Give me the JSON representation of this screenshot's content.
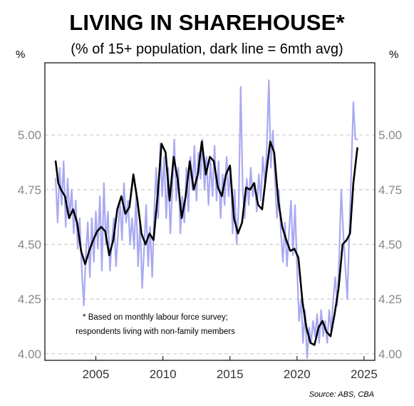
{
  "chart_data": {
    "type": "line",
    "title": "LIVING IN SHAREHOUSE*",
    "subtitle": "(% of 15+ population, dark line = 6mth avg)",
    "unit_left": "%",
    "unit_right": "%",
    "ylim": [
      3.97,
      5.33
    ],
    "yticks": [
      4.0,
      4.25,
      4.5,
      4.75,
      5.0
    ],
    "ytick_labels": [
      "4.00",
      "4.25",
      "4.50",
      "4.75",
      "5.00"
    ],
    "xlim": [
      2001.2,
      2025.8
    ],
    "xticks": [
      2005,
      2010,
      2015,
      2020,
      2025
    ],
    "xtick_labels": [
      "2005",
      "2010",
      "2015",
      "2020",
      "2025"
    ],
    "grid": "horizontal dashed",
    "axes_mirrored": true,
    "note_lines": [
      "* Based on monthly labour force survey;",
      "respondents living with non-family members"
    ],
    "source": "Source: ABS, CBA",
    "colors": {
      "monthly": "#a9a9f2",
      "average": "#000000",
      "grid": "#cccccc"
    },
    "series": [
      {
        "style": "monthly",
        "points": [
          [
            2002.0,
            4.8
          ],
          [
            2002.15,
            4.6
          ],
          [
            2002.3,
            4.85
          ],
          [
            2002.45,
            4.68
          ],
          [
            2002.6,
            4.88
          ],
          [
            2002.75,
            4.58
          ],
          [
            2002.9,
            4.8
          ],
          [
            2003.05,
            4.62
          ],
          [
            2003.2,
            4.75
          ],
          [
            2003.35,
            4.55
          ],
          [
            2003.5,
            4.7
          ],
          [
            2003.65,
            4.48
          ],
          [
            2003.8,
            4.62
          ],
          [
            2003.95,
            4.38
          ],
          [
            2004.1,
            4.22
          ],
          [
            2004.25,
            4.45
          ],
          [
            2004.4,
            4.6
          ],
          [
            2004.55,
            4.35
          ],
          [
            2004.7,
            4.62
          ],
          [
            2004.85,
            4.42
          ],
          [
            2005.0,
            4.65
          ],
          [
            2005.15,
            4.48
          ],
          [
            2005.3,
            4.72
          ],
          [
            2005.45,
            4.38
          ],
          [
            2005.6,
            4.78
          ],
          [
            2005.75,
            4.5
          ],
          [
            2005.9,
            4.65
          ],
          [
            2006.05,
            4.38
          ],
          [
            2006.2,
            4.52
          ],
          [
            2006.35,
            4.62
          ],
          [
            2006.5,
            4.4
          ],
          [
            2006.65,
            4.55
          ],
          [
            2006.8,
            4.7
          ],
          [
            2006.95,
            4.52
          ],
          [
            2007.1,
            4.78
          ],
          [
            2007.25,
            4.6
          ],
          [
            2007.4,
            4.7
          ],
          [
            2007.55,
            4.5
          ],
          [
            2007.7,
            4.62
          ],
          [
            2007.85,
            4.48
          ],
          [
            2008.0,
            4.72
          ],
          [
            2008.15,
            4.4
          ],
          [
            2008.3,
            4.6
          ],
          [
            2008.45,
            4.3
          ],
          [
            2008.6,
            4.48
          ],
          [
            2008.75,
            4.68
          ],
          [
            2008.9,
            4.4
          ],
          [
            2009.05,
            4.58
          ],
          [
            2009.2,
            4.35
          ],
          [
            2009.35,
            4.65
          ],
          [
            2009.5,
            4.85
          ],
          [
            2009.65,
            4.62
          ],
          [
            2009.8,
            4.96
          ],
          [
            2009.95,
            4.72
          ],
          [
            2010.1,
            4.9
          ],
          [
            2010.25,
            4.62
          ],
          [
            2010.4,
            4.85
          ],
          [
            2010.55,
            4.55
          ],
          [
            2010.7,
            4.75
          ],
          [
            2010.85,
            4.98
          ],
          [
            2011.0,
            4.7
          ],
          [
            2011.15,
            4.85
          ],
          [
            2011.3,
            4.55
          ],
          [
            2011.45,
            4.72
          ],
          [
            2011.6,
            4.6
          ],
          [
            2011.75,
            4.85
          ],
          [
            2011.9,
            4.65
          ],
          [
            2012.05,
            4.9
          ],
          [
            2012.2,
            4.75
          ],
          [
            2012.35,
            4.95
          ],
          [
            2012.5,
            4.7
          ],
          [
            2012.65,
            4.92
          ],
          [
            2012.8,
            4.8
          ],
          [
            2012.95,
            4.98
          ],
          [
            2013.1,
            4.75
          ],
          [
            2013.25,
            4.9
          ],
          [
            2013.4,
            4.68
          ],
          [
            2013.55,
            4.88
          ],
          [
            2013.7,
            4.72
          ],
          [
            2013.85,
            4.95
          ],
          [
            2014.0,
            4.7
          ],
          [
            2014.15,
            4.88
          ],
          [
            2014.3,
            4.62
          ],
          [
            2014.45,
            4.82
          ],
          [
            2014.6,
            4.68
          ],
          [
            2014.75,
            4.9
          ],
          [
            2014.9,
            4.72
          ],
          [
            2015.05,
            4.85
          ],
          [
            2015.2,
            4.55
          ],
          [
            2015.35,
            4.75
          ],
          [
            2015.5,
            4.5
          ],
          [
            2015.65,
            4.68
          ],
          [
            2015.8,
            5.22
          ],
          [
            2015.95,
            4.75
          ],
          [
            2016.1,
            4.62
          ],
          [
            2016.25,
            4.8
          ],
          [
            2016.4,
            4.68
          ],
          [
            2016.55,
            4.85
          ],
          [
            2016.7,
            4.72
          ],
          [
            2016.85,
            4.78
          ],
          [
            2017.0,
            4.65
          ],
          [
            2017.15,
            4.82
          ],
          [
            2017.3,
            4.7
          ],
          [
            2017.45,
            4.9
          ],
          [
            2017.6,
            4.78
          ],
          [
            2017.75,
            4.95
          ],
          [
            2017.9,
            5.25
          ],
          [
            2018.05,
            4.85
          ],
          [
            2018.2,
            5.02
          ],
          [
            2018.35,
            4.8
          ],
          [
            2018.5,
            4.62
          ],
          [
            2018.65,
            4.75
          ],
          [
            2018.8,
            4.55
          ],
          [
            2018.95,
            4.42
          ],
          [
            2019.1,
            4.6
          ],
          [
            2019.25,
            4.4
          ],
          [
            2019.4,
            4.55
          ],
          [
            2019.55,
            4.7
          ],
          [
            2019.7,
            4.45
          ],
          [
            2019.85,
            4.68
          ],
          [
            2020.0,
            4.4
          ],
          [
            2020.15,
            4.15
          ],
          [
            2020.3,
            4.25
          ],
          [
            2020.45,
            4.05
          ],
          [
            2020.6,
            4.2
          ],
          [
            2020.75,
            3.98
          ],
          [
            2020.9,
            4.12
          ],
          [
            2021.05,
            4.05
          ],
          [
            2021.2,
            4.15
          ],
          [
            2021.35,
            4.08
          ],
          [
            2021.5,
            4.18
          ],
          [
            2021.65,
            4.05
          ],
          [
            2021.8,
            4.2
          ],
          [
            2021.95,
            4.08
          ],
          [
            2022.1,
            4.15
          ],
          [
            2022.25,
            4.05
          ],
          [
            2022.4,
            4.2
          ],
          [
            2022.55,
            4.1
          ],
          [
            2022.7,
            4.25
          ],
          [
            2022.85,
            4.35
          ],
          [
            2023.0,
            4.22
          ],
          [
            2023.15,
            4.45
          ],
          [
            2023.3,
            4.75
          ],
          [
            2023.45,
            4.55
          ],
          [
            2023.6,
            4.4
          ],
          [
            2023.75,
            4.25
          ],
          [
            2023.9,
            4.55
          ],
          [
            2024.05,
            4.85
          ],
          [
            2024.2,
            5.15
          ],
          [
            2024.35,
            4.98
          ],
          [
            2024.5,
            4.98
          ]
        ]
      },
      {
        "style": "average",
        "points": [
          [
            2002.0,
            4.88
          ],
          [
            2002.2,
            4.78
          ],
          [
            2002.4,
            4.75
          ],
          [
            2002.7,
            4.72
          ],
          [
            2003.0,
            4.62
          ],
          [
            2003.3,
            4.66
          ],
          [
            2003.6,
            4.6
          ],
          [
            2003.9,
            4.47
          ],
          [
            2004.2,
            4.41
          ],
          [
            2004.5,
            4.47
          ],
          [
            2004.8,
            4.52
          ],
          [
            2005.1,
            4.56
          ],
          [
            2005.4,
            4.58
          ],
          [
            2005.7,
            4.56
          ],
          [
            2006.0,
            4.45
          ],
          [
            2006.3,
            4.52
          ],
          [
            2006.6,
            4.66
          ],
          [
            2006.9,
            4.72
          ],
          [
            2007.2,
            4.64
          ],
          [
            2007.5,
            4.67
          ],
          [
            2007.8,
            4.82
          ],
          [
            2008.1,
            4.7
          ],
          [
            2008.4,
            4.55
          ],
          [
            2008.7,
            4.5
          ],
          [
            2009.0,
            4.55
          ],
          [
            2009.3,
            4.52
          ],
          [
            2009.6,
            4.72
          ],
          [
            2009.9,
            4.96
          ],
          [
            2010.2,
            4.92
          ],
          [
            2010.5,
            4.7
          ],
          [
            2010.8,
            4.9
          ],
          [
            2011.1,
            4.8
          ],
          [
            2011.4,
            4.62
          ],
          [
            2011.7,
            4.72
          ],
          [
            2012.0,
            4.88
          ],
          [
            2012.3,
            4.75
          ],
          [
            2012.6,
            4.82
          ],
          [
            2012.9,
            4.97
          ],
          [
            2013.2,
            4.82
          ],
          [
            2013.5,
            4.9
          ],
          [
            2013.8,
            4.88
          ],
          [
            2014.1,
            4.76
          ],
          [
            2014.4,
            4.72
          ],
          [
            2014.7,
            4.82
          ],
          [
            2015.0,
            4.86
          ],
          [
            2015.3,
            4.62
          ],
          [
            2015.6,
            4.55
          ],
          [
            2015.9,
            4.6
          ],
          [
            2016.2,
            4.76
          ],
          [
            2016.5,
            4.75
          ],
          [
            2016.8,
            4.78
          ],
          [
            2017.1,
            4.68
          ],
          [
            2017.4,
            4.66
          ],
          [
            2017.7,
            4.82
          ],
          [
            2018.0,
            4.97
          ],
          [
            2018.3,
            4.92
          ],
          [
            2018.6,
            4.7
          ],
          [
            2018.9,
            4.58
          ],
          [
            2019.2,
            4.52
          ],
          [
            2019.5,
            4.47
          ],
          [
            2019.8,
            4.48
          ],
          [
            2020.1,
            4.44
          ],
          [
            2020.4,
            4.24
          ],
          [
            2020.7,
            4.12
          ],
          [
            2021.0,
            4.05
          ],
          [
            2021.3,
            4.04
          ],
          [
            2021.6,
            4.12
          ],
          [
            2021.9,
            4.15
          ],
          [
            2022.2,
            4.1
          ],
          [
            2022.5,
            4.08
          ],
          [
            2022.8,
            4.18
          ],
          [
            2023.1,
            4.3
          ],
          [
            2023.4,
            4.5
          ],
          [
            2023.7,
            4.52
          ],
          [
            2023.95,
            4.55
          ],
          [
            2024.2,
            4.78
          ],
          [
            2024.5,
            4.94
          ]
        ]
      }
    ]
  }
}
